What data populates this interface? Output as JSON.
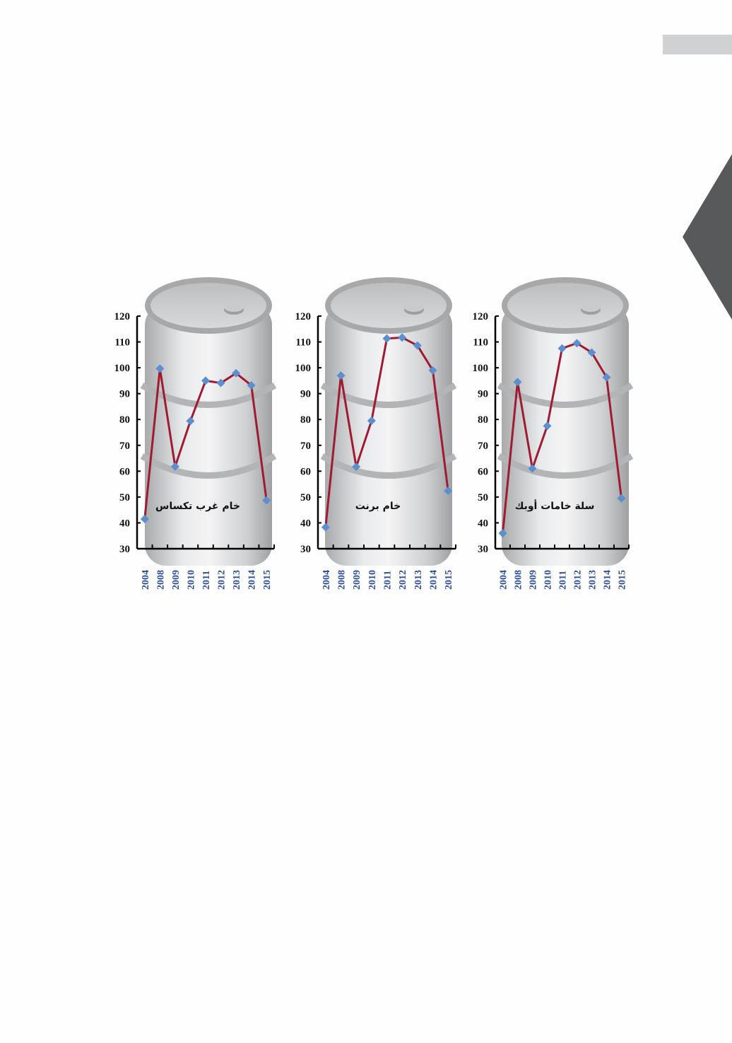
{
  "decor": {
    "bar_color": "#d0d1d3",
    "chevron_color": "#58595b"
  },
  "colors": {
    "line": "#9e1b32",
    "marker": "#5b8fd0",
    "year_label": "#2f4f9a",
    "axis": "#000000"
  },
  "chart_data": [
    {
      "type": "line",
      "title": "خام غرب تكساس",
      "categories": [
        "2004",
        "2008",
        "2009",
        "2010",
        "2011",
        "2012",
        "2013",
        "2014",
        "2015"
      ],
      "values": [
        41.5,
        99.7,
        61.8,
        79.4,
        95.0,
        94.1,
        97.9,
        93.2,
        48.7
      ],
      "ylim": [
        30,
        120
      ],
      "yticks": [
        30,
        40,
        50,
        60,
        70,
        80,
        90,
        100,
        110,
        120
      ],
      "grid": false
    },
    {
      "type": "line",
      "title": "خام برنت",
      "categories": [
        "2004",
        "2008",
        "2009",
        "2010",
        "2011",
        "2012",
        "2013",
        "2014",
        "2015"
      ],
      "values": [
        38.3,
        97.0,
        61.7,
        79.5,
        111.3,
        111.7,
        108.6,
        99.0,
        52.4
      ],
      "ylim": [
        30,
        120
      ],
      "yticks": [
        30,
        40,
        50,
        60,
        70,
        80,
        90,
        100,
        110,
        120
      ],
      "grid": false
    },
    {
      "type": "line",
      "title": "سلة خامات أوبك",
      "categories": [
        "2004",
        "2008",
        "2009",
        "2010",
        "2011",
        "2012",
        "2013",
        "2014",
        "2015"
      ],
      "values": [
        36.0,
        94.5,
        61.0,
        77.5,
        107.5,
        109.5,
        105.9,
        96.3,
        49.5
      ],
      "ylim": [
        30,
        120
      ],
      "yticks": [
        30,
        40,
        50,
        60,
        70,
        80,
        90,
        100,
        110,
        120
      ],
      "grid": false
    }
  ]
}
